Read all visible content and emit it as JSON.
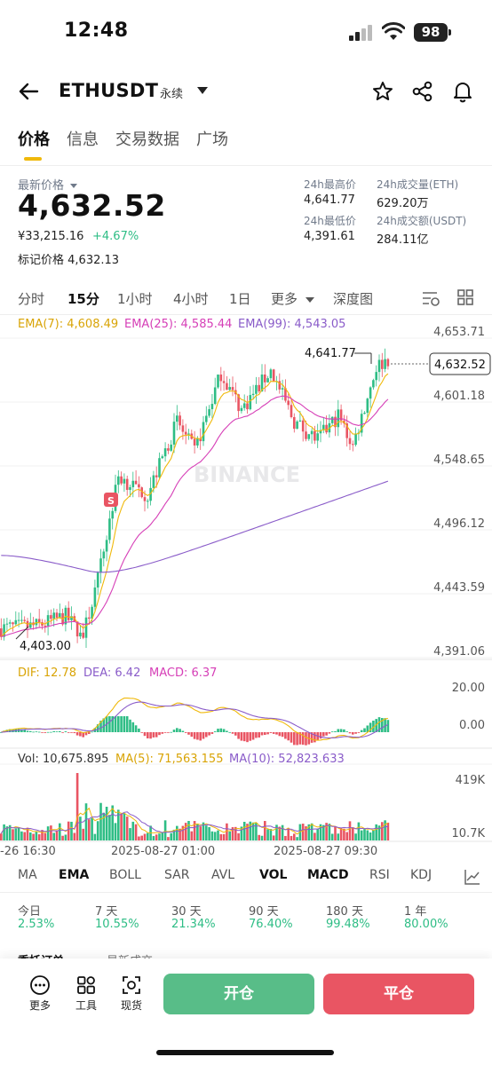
{
  "status": {
    "time": "12:48",
    "battery": "98"
  },
  "header": {
    "symbol": "ETHUSDT",
    "contract_type": "永续"
  },
  "tabs": [
    "价格",
    "信息",
    "交易数据",
    "广场"
  ],
  "price": {
    "label": "最新价格",
    "last": "4,632.52",
    "cny": "¥33,215.16",
    "change": "+4.67%",
    "mark_label": "标记价格",
    "mark_value": "4,632.13"
  },
  "stats": {
    "high_label": "24h最高价",
    "high": "4,641.77",
    "low_label": "24h最低价",
    "low": "4,391.61",
    "vol_label": "24h成交量(ETH)",
    "vol": "629.20万",
    "amt_label": "24h成交额(USDT)",
    "amt": "284.11亿"
  },
  "timeframes": [
    "分时",
    "15分",
    "1小时",
    "4小时",
    "1日",
    "更多",
    "深度图"
  ],
  "ema": {
    "ema7": "EMA(7): 4,608.49",
    "ema25": "EMA(25): 4,585.44",
    "ema99": "EMA(99): 4,543.05"
  },
  "price_axis": [
    "4,653.71",
    "4,601.18",
    "4,548.65",
    "4,496.12",
    "4,443.59",
    "4,391.06"
  ],
  "high_marker": "4,641.77",
  "low_marker": "4,403.00",
  "current_price_tag": "4,632.52",
  "watermark": "BINANCE",
  "sell_marker": "S",
  "macd": {
    "dif": "DIF: 12.78",
    "dea": "DEA: 6.42",
    "macd": "MACD: 6.37",
    "axis": [
      "20.00",
      "0.00"
    ]
  },
  "vol": {
    "vol": "Vol: 10,675.895",
    "ma5": "MA(5): 71,563.155",
    "ma10": "MA(10): 52,823.633",
    "axis": [
      "419K",
      "10.7K"
    ]
  },
  "time_axis": [
    "-26 16:30",
    "2025-08-27 01:00",
    "2025-08-27 09:30"
  ],
  "indicators": [
    "MA",
    "EMA",
    "BOLL",
    "SAR",
    "AVL",
    "VOL",
    "MACD",
    "RSI",
    "KDJ"
  ],
  "performance": [
    {
      "label": "今日",
      "value": "2.53%"
    },
    {
      "label": "7 天",
      "value": "10.55%"
    },
    {
      "label": "30 天",
      "value": "21.34%"
    },
    {
      "label": "90 天",
      "value": "76.40%"
    },
    {
      "label": "180 天",
      "value": "99.48%"
    },
    {
      "label": "1 年",
      "value": "80.00%"
    }
  ],
  "lower_tabs": [
    "委托订单",
    "最新成交"
  ],
  "footer": {
    "more": "更多",
    "tools": "工具",
    "spot": "现货",
    "open": "开仓",
    "close": "平仓"
  },
  "colors": {
    "up": "#2ebd85",
    "down": "#e95563",
    "ema7": "#F0B90B",
    "ema25": "#d63fb7",
    "ema99": "#8a5cc9",
    "accent": "#F0B90B"
  }
}
